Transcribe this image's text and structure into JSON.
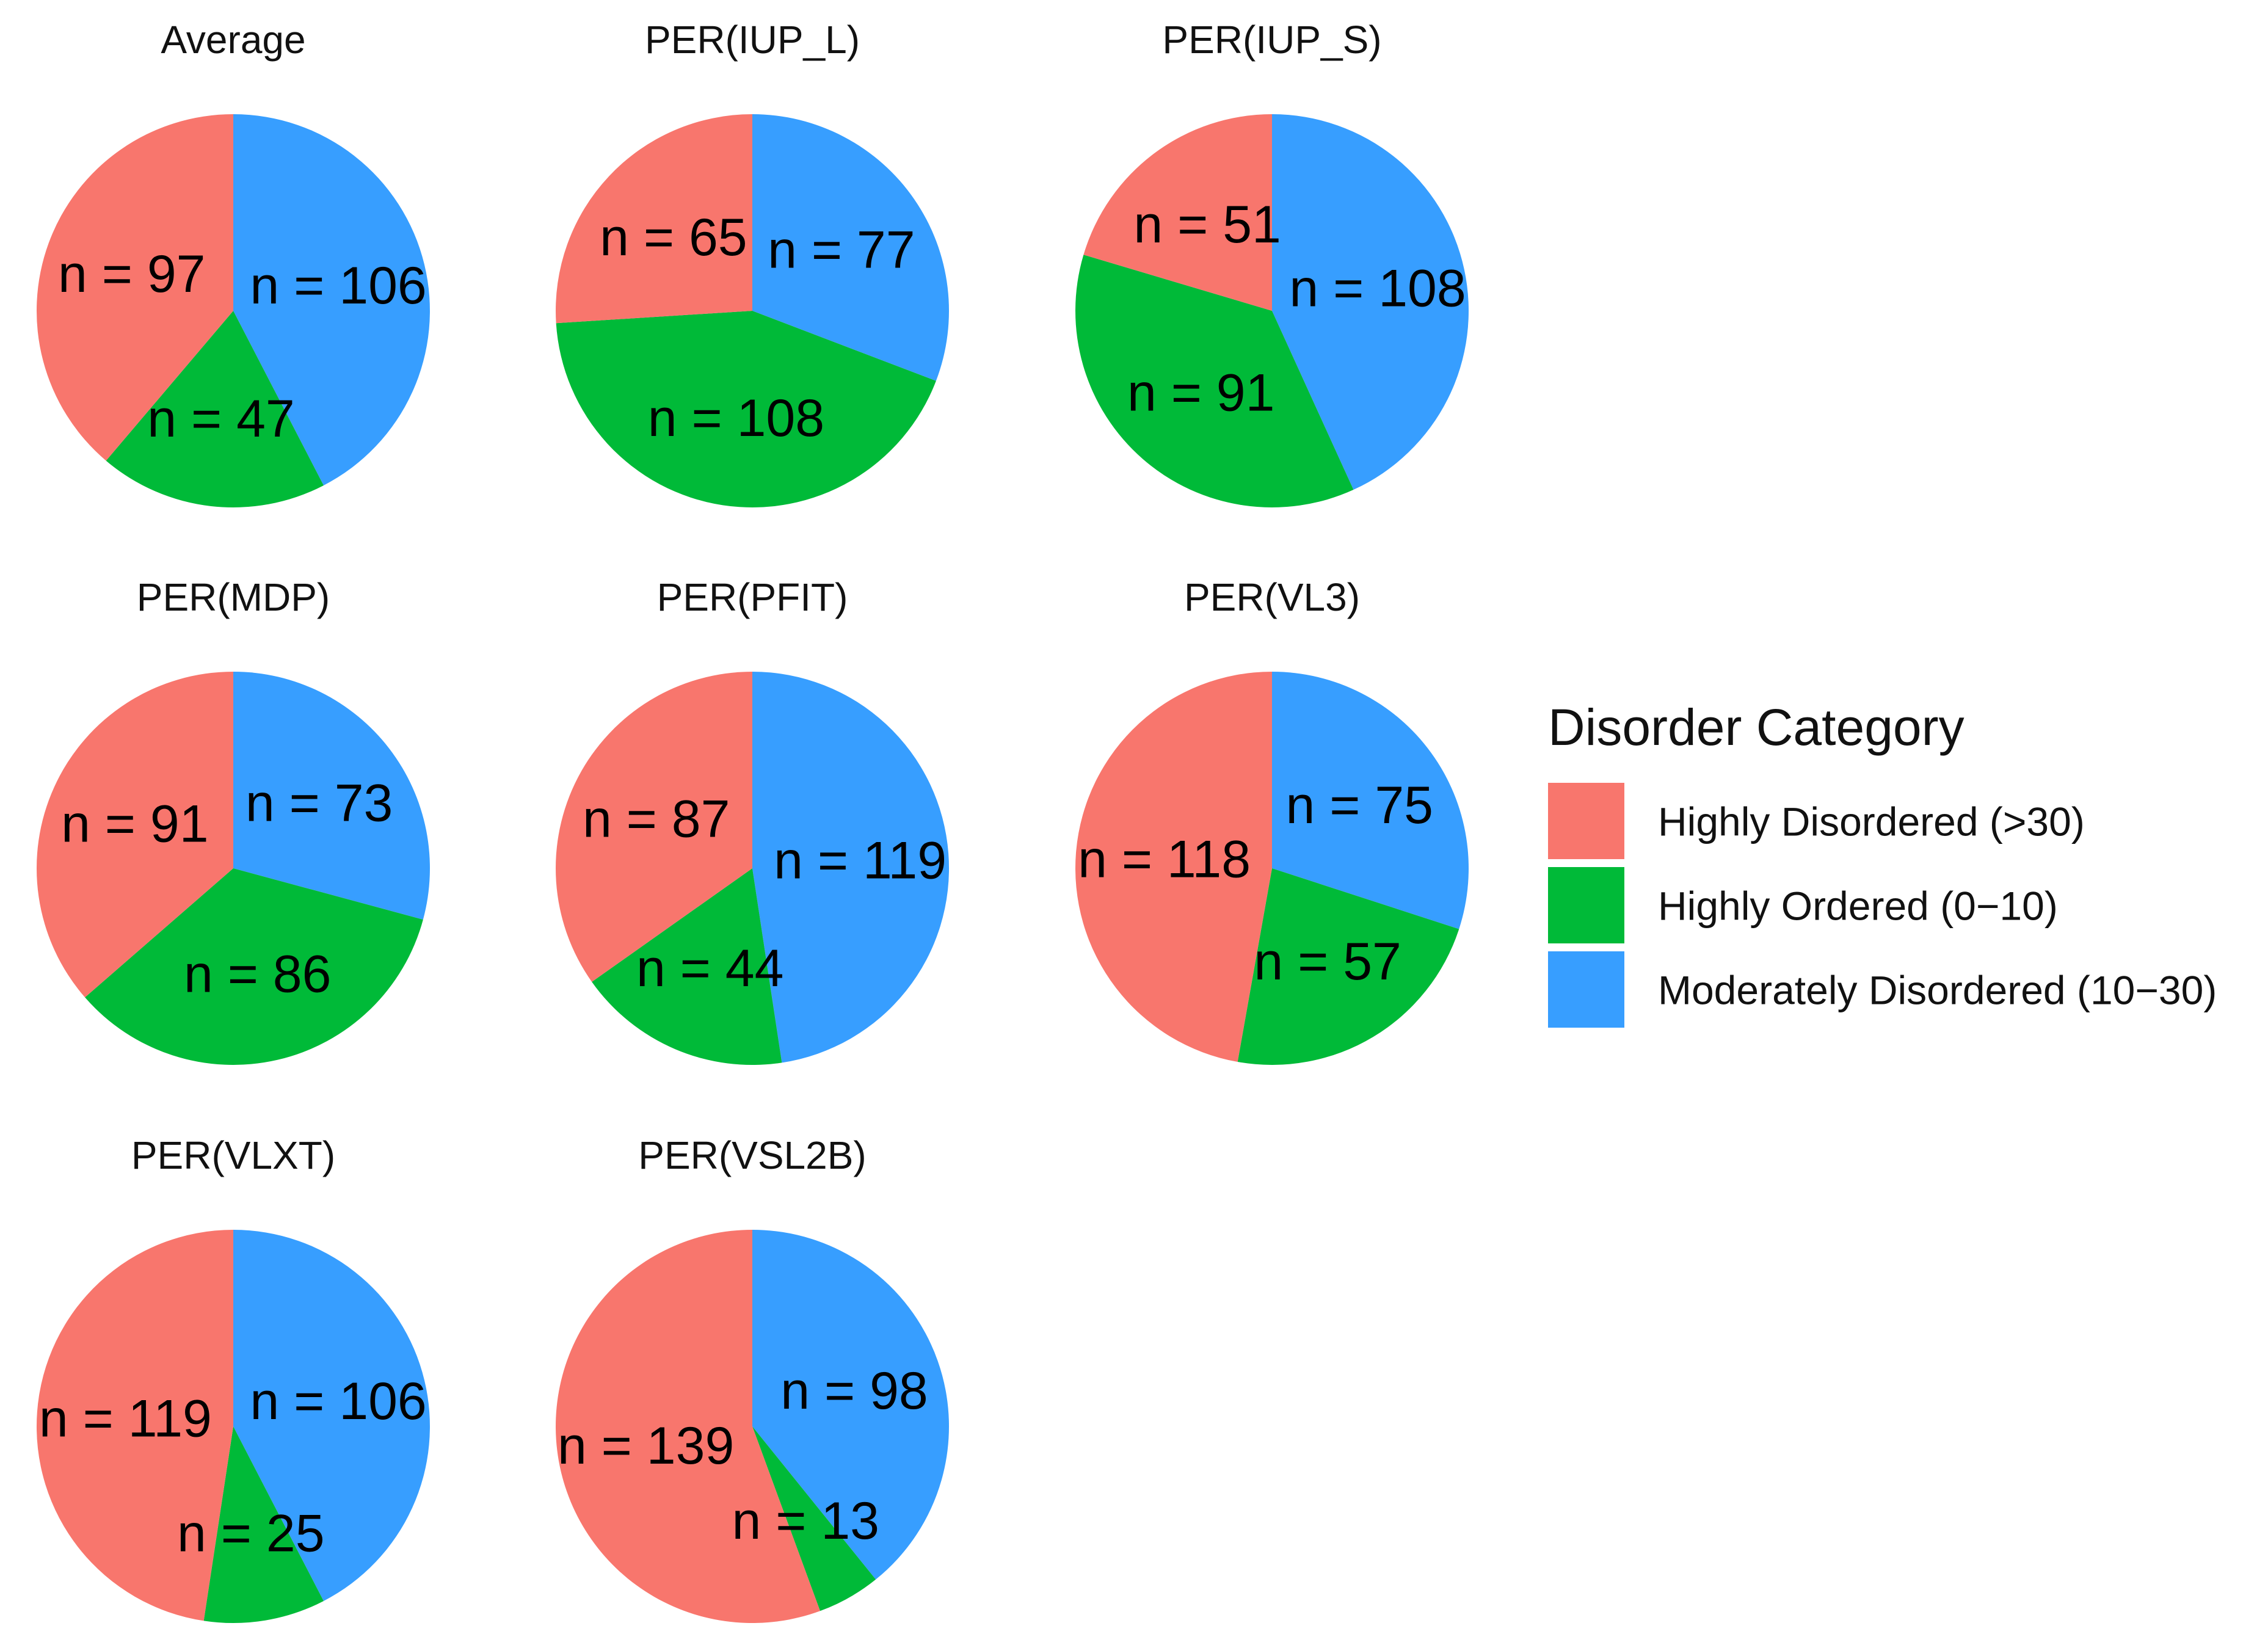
{
  "figure": {
    "legend": {
      "title": "Disorder Category",
      "items": [
        {
          "key": "hd",
          "label": "Highly Disordered (>30)",
          "color": "#F8766D"
        },
        {
          "key": "ho",
          "label": "Highly Ordered (0−10)",
          "color": "#00BA38"
        },
        {
          "key": "md",
          "label": "Moderately Disordered (10−30)",
          "color": "#379EFF"
        }
      ]
    }
  },
  "chart_data": [
    {
      "type": "pie",
      "title": "Average",
      "categories": [
        "Highly Disordered (>30)",
        "Highly Ordered (0−10)",
        "Moderately Disordered (10−30)"
      ],
      "values": [
        97,
        47,
        106
      ],
      "labels": [
        "n = 97",
        "n = 47",
        "n = 106"
      ]
    },
    {
      "type": "pie",
      "title": "PER(IUP_L)",
      "categories": [
        "Highly Disordered (>30)",
        "Highly Ordered (0−10)",
        "Moderately Disordered (10−30)"
      ],
      "values": [
        65,
        108,
        77
      ],
      "labels": [
        "n = 65",
        "n = 108",
        "n = 77"
      ]
    },
    {
      "type": "pie",
      "title": "PER(IUP_S)",
      "categories": [
        "Highly Disordered (>30)",
        "Highly Ordered (0−10)",
        "Moderately Disordered (10−30)"
      ],
      "values": [
        51,
        91,
        108
      ],
      "labels": [
        "n = 51",
        "n = 91",
        "n = 108"
      ]
    },
    {
      "type": "pie",
      "title": "PER(MDP)",
      "categories": [
        "Highly Disordered (>30)",
        "Highly Ordered (0−10)",
        "Moderately Disordered (10−30)"
      ],
      "values": [
        91,
        86,
        73
      ],
      "labels": [
        "n = 91",
        "n = 86",
        "n = 73"
      ]
    },
    {
      "type": "pie",
      "title": "PER(PFIT)",
      "categories": [
        "Highly Disordered (>30)",
        "Highly Ordered (0−10)",
        "Moderately Disordered (10−30)"
      ],
      "values": [
        87,
        44,
        119
      ],
      "labels": [
        "n = 87",
        "n = 44",
        "n = 119"
      ]
    },
    {
      "type": "pie",
      "title": "PER(VL3)",
      "categories": [
        "Highly Disordered (>30)",
        "Highly Ordered (0−10)",
        "Moderately Disordered (10−30)"
      ],
      "values": [
        118,
        57,
        75
      ],
      "labels": [
        "n = 118",
        "n = 57",
        "n = 75"
      ]
    },
    {
      "type": "pie",
      "title": "PER(VLXT)",
      "categories": [
        "Highly Disordered (>30)",
        "Highly Ordered (0−10)",
        "Moderately Disordered (10−30)"
      ],
      "values": [
        119,
        25,
        106
      ],
      "labels": [
        "n = 119",
        "n = 25",
        "n = 106"
      ]
    },
    {
      "type": "pie",
      "title": "PER(VSL2B)",
      "categories": [
        "Highly Disordered (>30)",
        "Highly Ordered (0−10)",
        "Moderately Disordered (10−30)"
      ],
      "values": [
        139,
        13,
        98
      ],
      "labels": [
        "n = 139",
        "n = 13",
        "n = 98"
      ]
    }
  ]
}
